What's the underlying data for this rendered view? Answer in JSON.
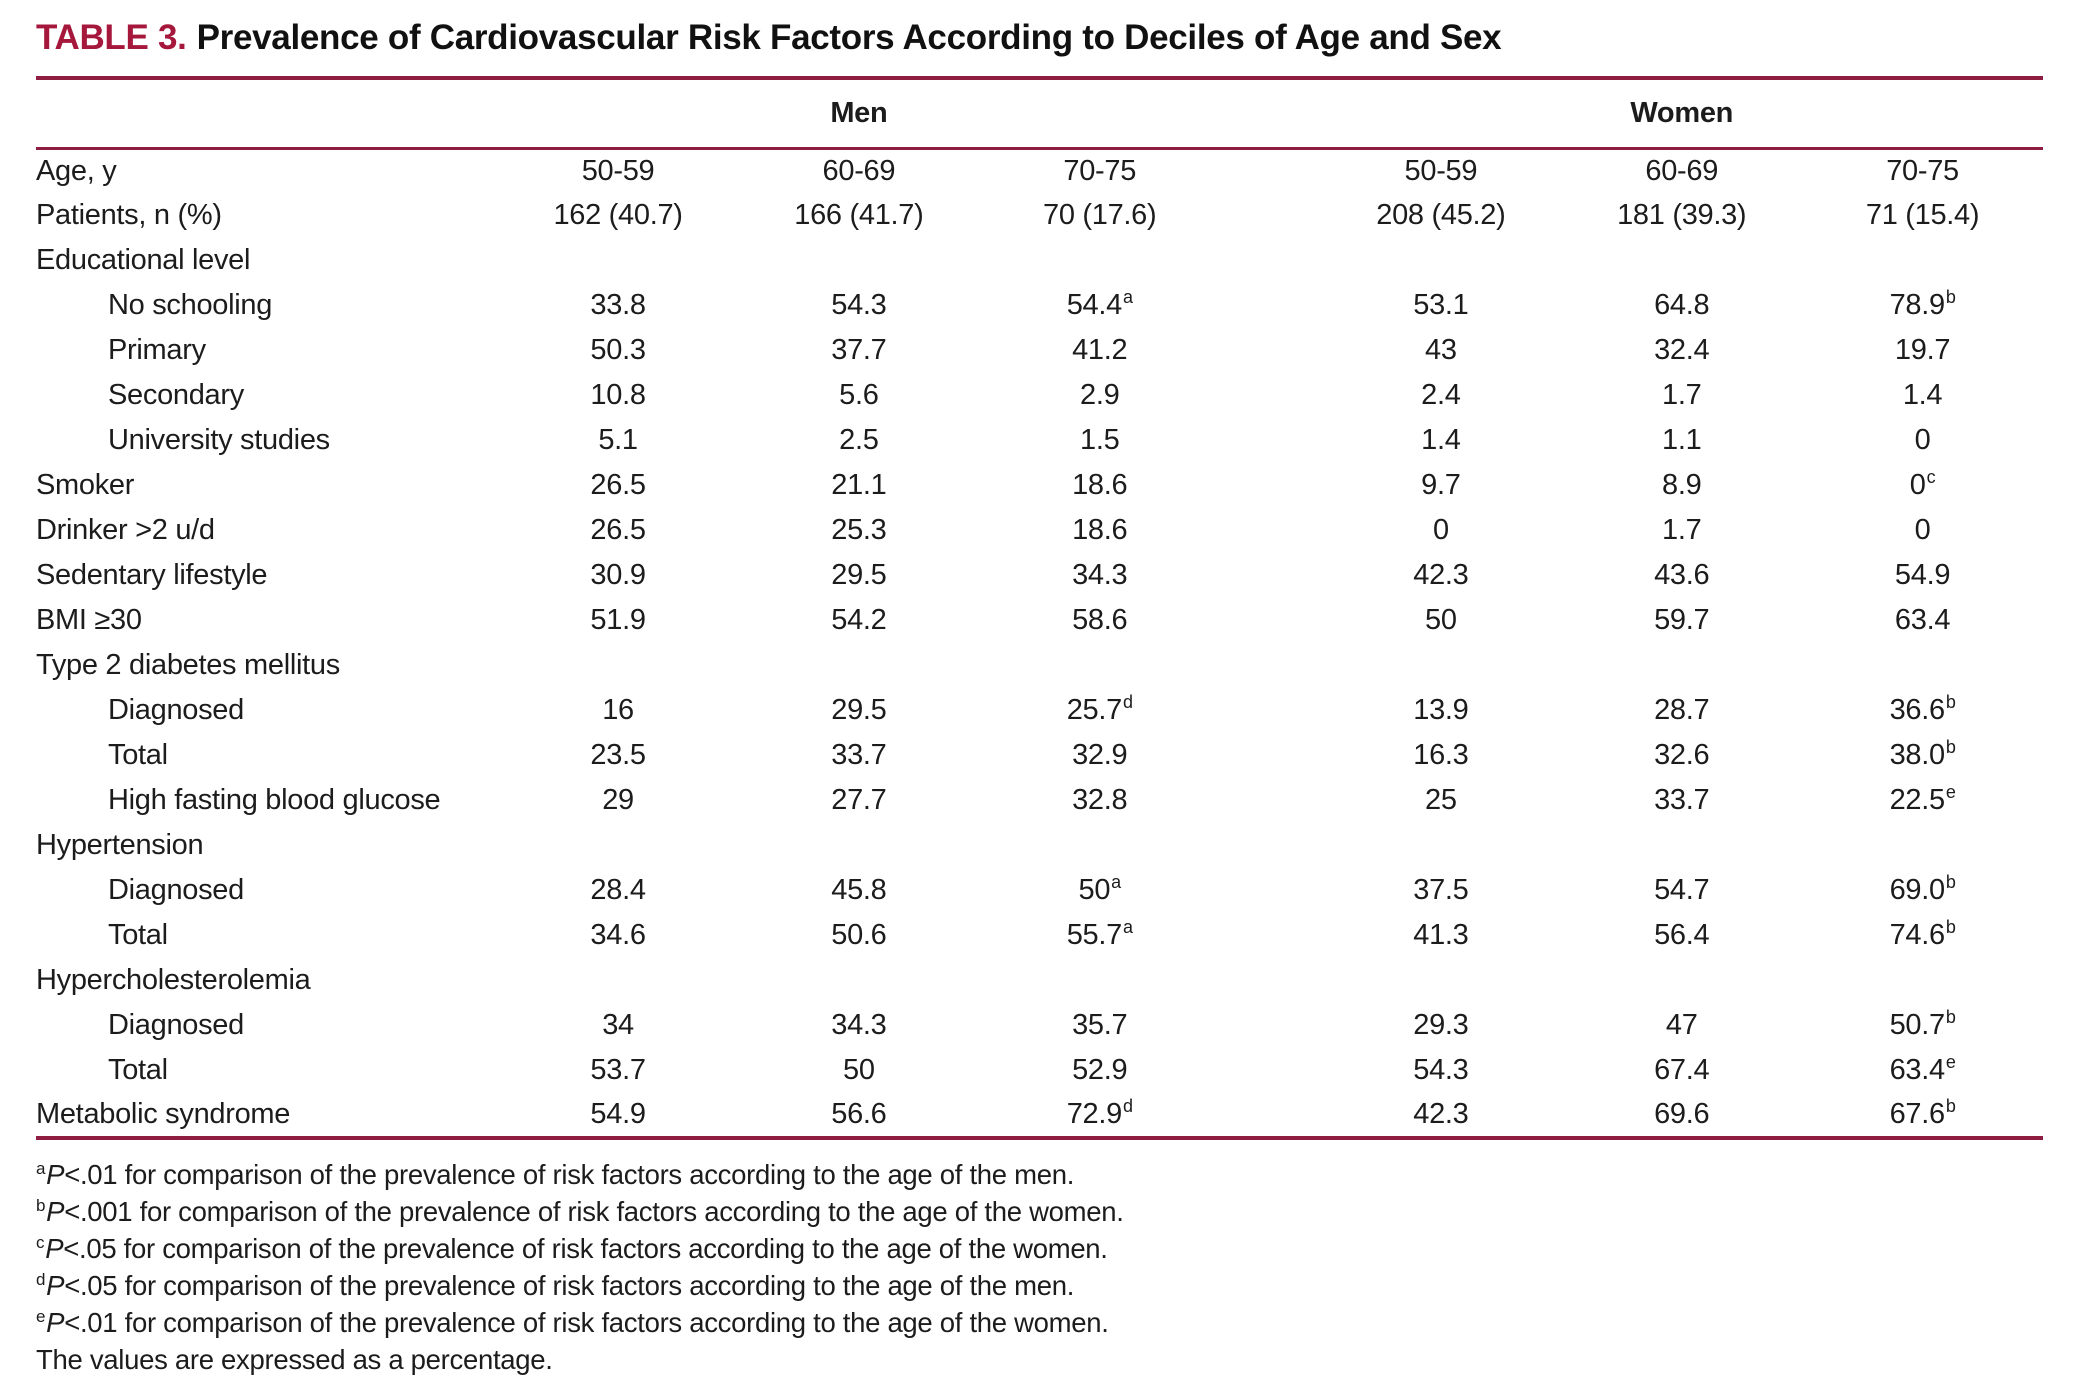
{
  "title": {
    "label": "TABLE 3.",
    "text": "Prevalence of Cardiovascular Risk Factors According to Deciles of Age and Sex"
  },
  "colors": {
    "accent": "#a6173c",
    "rule": "#8f1d42",
    "text": "#1c1c1c"
  },
  "groups": {
    "men": "Men",
    "women": "Women"
  },
  "rows": [
    {
      "label": "Age, y",
      "indent": 0,
      "cells": [
        {
          "v": "50-59"
        },
        {
          "v": "60-69"
        },
        {
          "v": "70-75"
        },
        {
          "v": "50-59"
        },
        {
          "v": "60-69"
        },
        {
          "v": "70-75"
        }
      ]
    },
    {
      "label": "Patients, n (%)",
      "indent": 0,
      "cells": [
        {
          "v": "162 (40.7)"
        },
        {
          "v": "166 (41.7)"
        },
        {
          "v": "70 (17.6)"
        },
        {
          "v": "208 (45.2)"
        },
        {
          "v": "181 (39.3)"
        },
        {
          "v": "71 (15.4)"
        }
      ]
    },
    {
      "label": "Educational level",
      "indent": 0,
      "cells": []
    },
    {
      "label": "No schooling",
      "indent": 1,
      "cells": [
        {
          "v": "33.8"
        },
        {
          "v": "54.3"
        },
        {
          "v": "54.4",
          "s": "a"
        },
        {
          "v": "53.1"
        },
        {
          "v": "64.8"
        },
        {
          "v": "78.9",
          "s": "b"
        }
      ]
    },
    {
      "label": "Primary",
      "indent": 1,
      "cells": [
        {
          "v": "50.3"
        },
        {
          "v": "37.7"
        },
        {
          "v": "41.2"
        },
        {
          "v": "43"
        },
        {
          "v": "32.4"
        },
        {
          "v": "19.7"
        }
      ]
    },
    {
      "label": "Secondary",
      "indent": 1,
      "cells": [
        {
          "v": "10.8"
        },
        {
          "v": "5.6"
        },
        {
          "v": "2.9"
        },
        {
          "v": "2.4"
        },
        {
          "v": "1.7"
        },
        {
          "v": "1.4"
        }
      ]
    },
    {
      "label": "University studies",
      "indent": 1,
      "cells": [
        {
          "v": "5.1"
        },
        {
          "v": "2.5"
        },
        {
          "v": "1.5"
        },
        {
          "v": "1.4"
        },
        {
          "v": "1.1"
        },
        {
          "v": "0"
        }
      ]
    },
    {
      "label": "Smoker",
      "indent": 0,
      "cells": [
        {
          "v": "26.5"
        },
        {
          "v": "21.1"
        },
        {
          "v": "18.6"
        },
        {
          "v": "9.7"
        },
        {
          "v": "8.9"
        },
        {
          "v": "0",
          "s": "c"
        }
      ]
    },
    {
      "label": "Drinker >2 u/d",
      "indent": 0,
      "cells": [
        {
          "v": "26.5"
        },
        {
          "v": "25.3"
        },
        {
          "v": "18.6"
        },
        {
          "v": "0"
        },
        {
          "v": "1.7"
        },
        {
          "v": "0"
        }
      ]
    },
    {
      "label": "Sedentary lifestyle",
      "indent": 0,
      "cells": [
        {
          "v": "30.9"
        },
        {
          "v": "29.5"
        },
        {
          "v": "34.3"
        },
        {
          "v": "42.3"
        },
        {
          "v": "43.6"
        },
        {
          "v": "54.9"
        }
      ]
    },
    {
      "label": "BMI ≥30",
      "indent": 0,
      "cells": [
        {
          "v": "51.9"
        },
        {
          "v": "54.2"
        },
        {
          "v": "58.6"
        },
        {
          "v": "50"
        },
        {
          "v": "59.7"
        },
        {
          "v": "63.4"
        }
      ]
    },
    {
      "label": "Type 2 diabetes mellitus",
      "indent": 0,
      "cells": []
    },
    {
      "label": "Diagnosed",
      "indent": 1,
      "cells": [
        {
          "v": "16"
        },
        {
          "v": "29.5"
        },
        {
          "v": "25.7",
          "s": "d"
        },
        {
          "v": "13.9"
        },
        {
          "v": "28.7"
        },
        {
          "v": "36.6",
          "s": "b"
        }
      ]
    },
    {
      "label": "Total",
      "indent": 1,
      "cells": [
        {
          "v": "23.5"
        },
        {
          "v": "33.7"
        },
        {
          "v": "32.9"
        },
        {
          "v": "16.3"
        },
        {
          "v": "32.6"
        },
        {
          "v": "38.0",
          "s": "b"
        }
      ]
    },
    {
      "label": "High fasting blood glucose",
      "indent": 1,
      "cells": [
        {
          "v": "29"
        },
        {
          "v": "27.7"
        },
        {
          "v": "32.8"
        },
        {
          "v": "25"
        },
        {
          "v": "33.7"
        },
        {
          "v": "22.5",
          "s": "e"
        }
      ]
    },
    {
      "label": "Hypertension",
      "indent": 0,
      "cells": []
    },
    {
      "label": "Diagnosed",
      "indent": 1,
      "cells": [
        {
          "v": "28.4"
        },
        {
          "v": "45.8"
        },
        {
          "v": "50",
          "s": "a"
        },
        {
          "v": "37.5"
        },
        {
          "v": "54.7"
        },
        {
          "v": "69.0",
          "s": "b"
        }
      ]
    },
    {
      "label": "Total",
      "indent": 1,
      "cells": [
        {
          "v": "34.6"
        },
        {
          "v": "50.6"
        },
        {
          "v": "55.7",
          "s": "a"
        },
        {
          "v": "41.3"
        },
        {
          "v": "56.4"
        },
        {
          "v": "74.6",
          "s": "b"
        }
      ]
    },
    {
      "label": "Hypercholesterolemia",
      "indent": 0,
      "cells": []
    },
    {
      "label": "Diagnosed",
      "indent": 1,
      "cells": [
        {
          "v": "34"
        },
        {
          "v": "34.3"
        },
        {
          "v": "35.7"
        },
        {
          "v": "29.3"
        },
        {
          "v": "47"
        },
        {
          "v": "50.7",
          "s": "b"
        }
      ]
    },
    {
      "label": "Total",
      "indent": 1,
      "cells": [
        {
          "v": "53.7"
        },
        {
          "v": "50"
        },
        {
          "v": "52.9"
        },
        {
          "v": "54.3"
        },
        {
          "v": "67.4"
        },
        {
          "v": "63.4",
          "s": "e"
        }
      ]
    },
    {
      "label": "Metabolic syndrome",
      "indent": 0,
      "cells": [
        {
          "v": "54.9"
        },
        {
          "v": "56.6"
        },
        {
          "v": "72.9",
          "s": "d"
        },
        {
          "v": "42.3"
        },
        {
          "v": "69.6"
        },
        {
          "v": "67.6",
          "s": "b"
        }
      ]
    }
  ],
  "footnotes": [
    {
      "marker": "a",
      "p": "P",
      "body": "<.01 for comparison of the prevalence of risk factors according to the age of the men."
    },
    {
      "marker": "b",
      "p": "P",
      "body": "<.001 for comparison of the prevalence of risk factors according to the age of the women."
    },
    {
      "marker": "c",
      "p": "P",
      "body": "<.05 for comparison of the prevalence of risk factors according to the age of the women."
    },
    {
      "marker": "d",
      "p": "P",
      "body": "<.05 for comparison of the prevalence of risk factors according to the age of the men."
    },
    {
      "marker": "e",
      "p": "P",
      "body": "<.01 for comparison of the prevalence of risk factors according to the age of the women."
    },
    {
      "marker": "",
      "p": "",
      "body": "The values are expressed as a percentage."
    }
  ]
}
